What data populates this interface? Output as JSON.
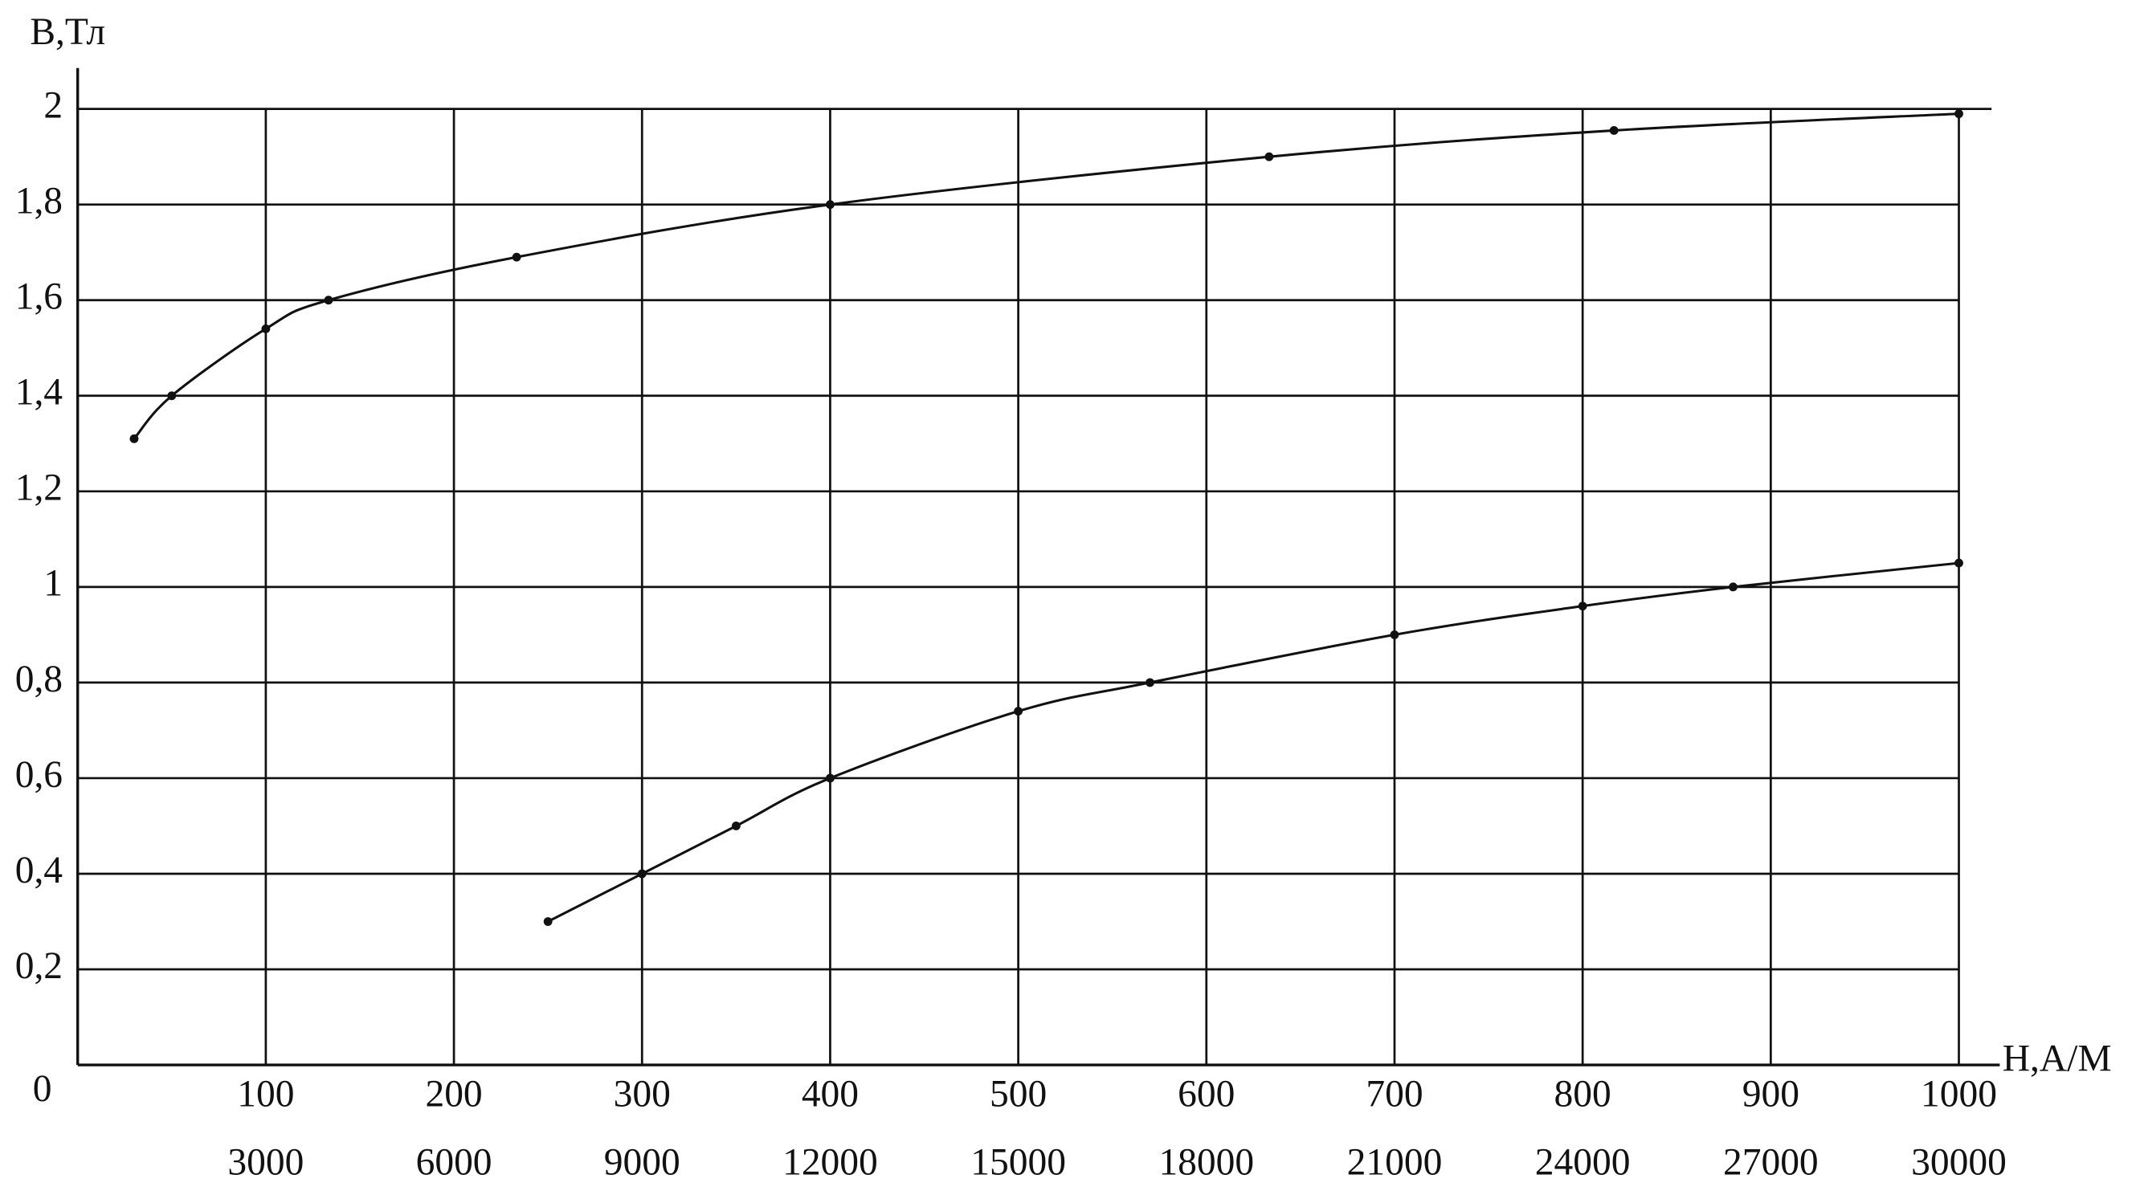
{
  "chart_data": {
    "type": "line",
    "ylabel": "B,Тл",
    "xlabel": "H,A/M",
    "xlim": [
      0,
      1000
    ],
    "xticks": [
      100,
      200,
      300,
      400,
      500,
      600,
      700,
      800,
      900,
      1000
    ],
    "x2lim": [
      0,
      30000
    ],
    "x2ticks": [
      3000,
      6000,
      9000,
      12000,
      15000,
      18000,
      21000,
      24000,
      27000,
      30000
    ],
    "ylim": [
      0,
      2
    ],
    "yticks": [
      0,
      {
        "value": 0.2,
        "label": "0,2"
      },
      {
        "value": 0.4,
        "label": "0,4"
      },
      {
        "value": 0.6,
        "label": "0,6"
      },
      {
        "value": 0.8,
        "label": "0,8"
      },
      1,
      {
        "value": 1.2,
        "label": "1,2"
      },
      {
        "value": 1.4,
        "label": "1,4"
      },
      {
        "value": 1.6,
        "label": "1,6"
      },
      {
        "value": 1.8,
        "label": "1,8"
      },
      2
    ],
    "grid": true,
    "series": [
      {
        "color": "#111111",
        "axis": "x2",
        "x": [
          900,
          1500,
          3000,
          4000,
          7000,
          12000,
          19000,
          24500,
          30000
        ],
        "values": [
          1.31,
          1.4,
          1.54,
          1.6,
          1.69,
          1.8,
          1.9,
          1.955,
          1.99
        ]
      },
      {
        "color": "#111111",
        "x": [
          250,
          300,
          350,
          400,
          500,
          570,
          700,
          800,
          880,
          1000
        ],
        "values": [
          0.3,
          0.4,
          0.5,
          0.6,
          0.74,
          0.8,
          0.9,
          0.96,
          1.0,
          1.05
        ]
      }
    ]
  }
}
